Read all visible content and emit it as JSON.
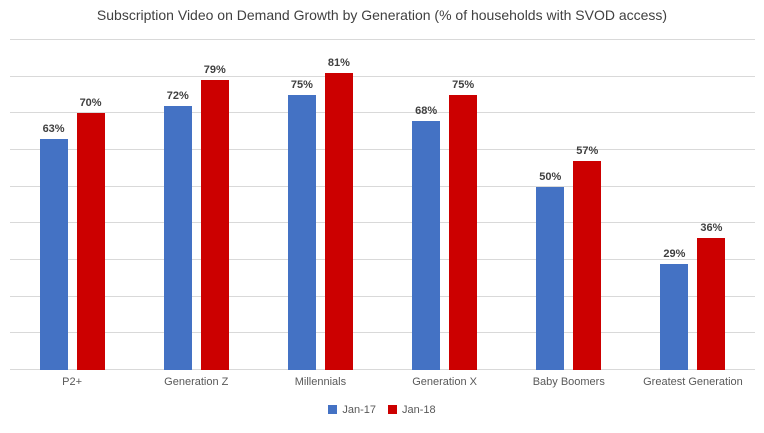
{
  "chart_data": {
    "type": "bar",
    "title": "Subscription Video on Demand Growth by Generation (% of households with SVOD access)",
    "categories": [
      "P2+",
      "Generation Z",
      "Millennials",
      "Generation X",
      "Baby Boomers",
      "Greatest Generation"
    ],
    "series": [
      {
        "name": "Jan-17",
        "color": "#4472C4",
        "values": [
          63,
          72,
          75,
          68,
          50,
          29
        ]
      },
      {
        "name": "Jan-18",
        "color": "#CC0000",
        "values": [
          70,
          79,
          81,
          75,
          57,
          36
        ]
      }
    ],
    "value_suffix": "%",
    "xlabel": "",
    "ylabel": "",
    "ylim": [
      0,
      90
    ],
    "grid_step": 10,
    "grid": true,
    "y_axis_labels_visible": false,
    "data_labels": true,
    "legend_position": "bottom"
  },
  "colors": {
    "background": "#FFFFFF",
    "grid": "#D9D9D9",
    "axis": "#D9D9D9",
    "title_text": "#404040",
    "data_label_text": "#404040",
    "category_text": "#595959"
  }
}
